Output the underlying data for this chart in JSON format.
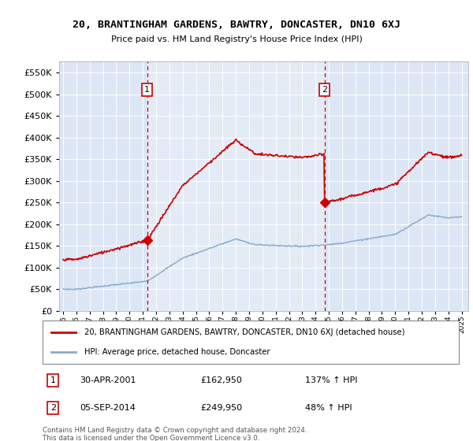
{
  "title": "20, BRANTINGHAM GARDENS, BAWTRY, DONCASTER, DN10 6XJ",
  "subtitle": "Price paid vs. HM Land Registry's House Price Index (HPI)",
  "legend_line1": "20, BRANTINGHAM GARDENS, BAWTRY, DONCASTER, DN10 6XJ (detached house)",
  "legend_line2": "HPI: Average price, detached house, Doncaster",
  "marker1_date": "30-APR-2001",
  "marker1_price": "£162,950",
  "marker1_label": "137% ↑ HPI",
  "marker2_date": "05-SEP-2014",
  "marker2_price": "£249,950",
  "marker2_label": "48% ↑ HPI",
  "footnote": "Contains HM Land Registry data © Crown copyright and database right 2024.\nThis data is licensed under the Open Government Licence v3.0.",
  "red_color": "#cc0000",
  "blue_color": "#88aacc",
  "bg_color": "#dce6f5",
  "bg_color2": "#e8f0f8",
  "white": "#ffffff",
  "marker1_x": 2001.33,
  "marker2_x": 2014.67,
  "ylim_min": 0,
  "ylim_max": 575000,
  "ytick_values": [
    0,
    50000,
    100000,
    150000,
    200000,
    250000,
    300000,
    350000,
    400000,
    450000,
    500000,
    550000
  ],
  "xlim_min": 1994.7,
  "xlim_max": 2025.5
}
